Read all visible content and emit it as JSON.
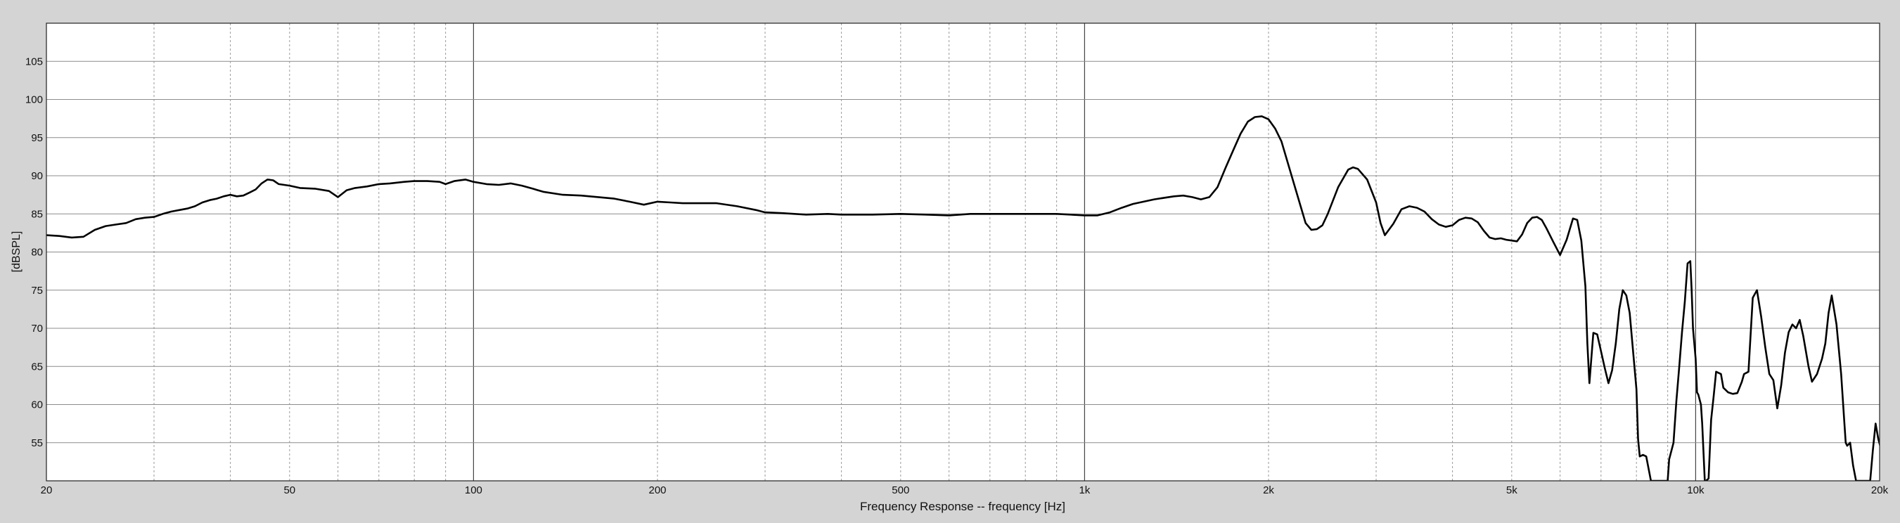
{
  "chart_data": {
    "type": "line",
    "xlabel": "Frequency Response -- frequency [Hz]",
    "ylabel": "[dBSPL]",
    "x_scale": "log",
    "xlim": [
      20,
      20000
    ],
    "ylim": [
      50,
      110
    ],
    "x_ticks": [
      {
        "value": 20,
        "label": "20"
      },
      {
        "value": 50,
        "label": "50"
      },
      {
        "value": 100,
        "label": "100"
      },
      {
        "value": 200,
        "label": "200"
      },
      {
        "value": 500,
        "label": "500"
      },
      {
        "value": 1000,
        "label": "1k"
      },
      {
        "value": 2000,
        "label": "2k"
      },
      {
        "value": 5000,
        "label": "5k"
      },
      {
        "value": 10000,
        "label": "10k"
      },
      {
        "value": 20000,
        "label": "20k"
      }
    ],
    "y_ticks": [
      {
        "value": 55,
        "label": "55"
      },
      {
        "value": 60,
        "label": "60"
      },
      {
        "value": 65,
        "label": "65"
      },
      {
        "value": 70,
        "label": "70"
      },
      {
        "value": 75,
        "label": "75"
      },
      {
        "value": 80,
        "label": "80"
      },
      {
        "value": 85,
        "label": "85"
      },
      {
        "value": 90,
        "label": "90"
      },
      {
        "value": 95,
        "label": "95"
      },
      {
        "value": 100,
        "label": "100"
      },
      {
        "value": 105,
        "label": "105"
      }
    ],
    "grid": true,
    "series": [
      {
        "color": "#000000",
        "points": [
          [
            20,
            82.2
          ],
          [
            21,
            82.1
          ],
          [
            22,
            81.9
          ],
          [
            23,
            82.0
          ],
          [
            24,
            82.9
          ],
          [
            25,
            83.4
          ],
          [
            26,
            83.6
          ],
          [
            27,
            83.8
          ],
          [
            28,
            84.3
          ],
          [
            29,
            84.5
          ],
          [
            30,
            84.6
          ],
          [
            31,
            85.0
          ],
          [
            32,
            85.3
          ],
          [
            33,
            85.5
          ],
          [
            34,
            85.7
          ],
          [
            35,
            86.0
          ],
          [
            36,
            86.5
          ],
          [
            37,
            86.8
          ],
          [
            38,
            87.0
          ],
          [
            39,
            87.3
          ],
          [
            40,
            87.5
          ],
          [
            41,
            87.3
          ],
          [
            42,
            87.4
          ],
          [
            43,
            87.8
          ],
          [
            44,
            88.2
          ],
          [
            45,
            89.0
          ],
          [
            46,
            89.5
          ],
          [
            47,
            89.4
          ],
          [
            48,
            88.9
          ],
          [
            50,
            88.7
          ],
          [
            52,
            88.4
          ],
          [
            55,
            88.3
          ],
          [
            58,
            88.0
          ],
          [
            60,
            87.2
          ],
          [
            62,
            88.1
          ],
          [
            64,
            88.4
          ],
          [
            67,
            88.6
          ],
          [
            70,
            88.9
          ],
          [
            73,
            89.0
          ],
          [
            77,
            89.2
          ],
          [
            80,
            89.3
          ],
          [
            84,
            89.3
          ],
          [
            88,
            89.2
          ],
          [
            90,
            88.9
          ],
          [
            93,
            89.3
          ],
          [
            97,
            89.5
          ],
          [
            100,
            89.2
          ],
          [
            105,
            88.9
          ],
          [
            110,
            88.8
          ],
          [
            115,
            89.0
          ],
          [
            120,
            88.7
          ],
          [
            125,
            88.3
          ],
          [
            130,
            87.9
          ],
          [
            140,
            87.5
          ],
          [
            150,
            87.4
          ],
          [
            160,
            87.2
          ],
          [
            170,
            87.0
          ],
          [
            180,
            86.6
          ],
          [
            190,
            86.2
          ],
          [
            200,
            86.6
          ],
          [
            210,
            86.5
          ],
          [
            220,
            86.4
          ],
          [
            240,
            86.4
          ],
          [
            250,
            86.4
          ],
          [
            270,
            86.0
          ],
          [
            290,
            85.5
          ],
          [
            300,
            85.2
          ],
          [
            320,
            85.1
          ],
          [
            350,
            84.9
          ],
          [
            380,
            85.0
          ],
          [
            400,
            84.9
          ],
          [
            450,
            84.9
          ],
          [
            500,
            85.0
          ],
          [
            550,
            84.9
          ],
          [
            600,
            84.8
          ],
          [
            650,
            85.0
          ],
          [
            700,
            85.0
          ],
          [
            800,
            85.0
          ],
          [
            900,
            85.0
          ],
          [
            1000,
            84.8
          ],
          [
            1050,
            84.8
          ],
          [
            1100,
            85.2
          ],
          [
            1150,
            85.8
          ],
          [
            1200,
            86.3
          ],
          [
            1300,
            86.9
          ],
          [
            1400,
            87.3
          ],
          [
            1450,
            87.4
          ],
          [
            1500,
            87.2
          ],
          [
            1550,
            86.9
          ],
          [
            1600,
            87.2
          ],
          [
            1650,
            88.5
          ],
          [
            1700,
            91.0
          ],
          [
            1750,
            93.3
          ],
          [
            1800,
            95.5
          ],
          [
            1850,
            97.1
          ],
          [
            1900,
            97.7
          ],
          [
            1950,
            97.8
          ],
          [
            2000,
            97.4
          ],
          [
            2050,
            96.2
          ],
          [
            2100,
            94.5
          ],
          [
            2200,
            89.0
          ],
          [
            2300,
            83.8
          ],
          [
            2350,
            82.9
          ],
          [
            2400,
            83.0
          ],
          [
            2450,
            83.5
          ],
          [
            2500,
            85.0
          ],
          [
            2600,
            88.5
          ],
          [
            2700,
            90.8
          ],
          [
            2750,
            91.1
          ],
          [
            2800,
            90.9
          ],
          [
            2900,
            89.5
          ],
          [
            3000,
            86.5
          ],
          [
            3050,
            83.8
          ],
          [
            3100,
            82.2
          ],
          [
            3200,
            83.7
          ],
          [
            3300,
            85.6
          ],
          [
            3400,
            86.0
          ],
          [
            3500,
            85.8
          ],
          [
            3600,
            85.3
          ],
          [
            3700,
            84.3
          ],
          [
            3800,
            83.6
          ],
          [
            3900,
            83.3
          ],
          [
            4000,
            83.5
          ],
          [
            4100,
            84.2
          ],
          [
            4200,
            84.5
          ],
          [
            4300,
            84.4
          ],
          [
            4400,
            83.9
          ],
          [
            4500,
            82.8
          ],
          [
            4600,
            81.9
          ],
          [
            4700,
            81.7
          ],
          [
            4800,
            81.8
          ],
          [
            4900,
            81.6
          ],
          [
            5000,
            81.5
          ],
          [
            5100,
            81.4
          ],
          [
            5200,
            82.3
          ],
          [
            5300,
            83.8
          ],
          [
            5400,
            84.5
          ],
          [
            5500,
            84.6
          ],
          [
            5600,
            84.2
          ],
          [
            5700,
            83.1
          ],
          [
            5850,
            81.3
          ],
          [
            6000,
            79.6
          ],
          [
            6150,
            81.6
          ],
          [
            6300,
            84.4
          ],
          [
            6400,
            84.2
          ],
          [
            6500,
            81.5
          ],
          [
            6600,
            75.5
          ],
          [
            6650,
            68.0
          ],
          [
            6700,
            62.8
          ],
          [
            6800,
            69.4
          ],
          [
            6900,
            69.2
          ],
          [
            7000,
            67.0
          ],
          [
            7100,
            64.8
          ],
          [
            7200,
            62.8
          ],
          [
            7300,
            64.5
          ],
          [
            7400,
            68.0
          ],
          [
            7500,
            72.5
          ],
          [
            7600,
            75.0
          ],
          [
            7700,
            74.3
          ],
          [
            7800,
            72.0
          ],
          [
            7900,
            67.0
          ],
          [
            8000,
            62.0
          ],
          [
            8050,
            55.5
          ],
          [
            8100,
            53.2
          ],
          [
            8200,
            53.4
          ],
          [
            8300,
            53.2
          ],
          [
            8450,
            50.0
          ],
          [
            9000,
            50.0
          ],
          [
            9050,
            52.8
          ],
          [
            9200,
            55.0
          ],
          [
            9300,
            60.5
          ],
          [
            9400,
            65.0
          ],
          [
            9500,
            69.5
          ],
          [
            9600,
            73.5
          ],
          [
            9700,
            78.5
          ],
          [
            9800,
            78.8
          ],
          [
            9850,
            75.0
          ],
          [
            9900,
            70.0
          ],
          [
            10000,
            66.0
          ],
          [
            10050,
            61.6
          ],
          [
            10100,
            61.3
          ],
          [
            10200,
            60.0
          ],
          [
            10250,
            57.5
          ],
          [
            10350,
            50.0
          ],
          [
            10400,
            50.0
          ],
          [
            10500,
            50.3
          ],
          [
            10600,
            58.0
          ],
          [
            10700,
            61.0
          ],
          [
            10800,
            64.3
          ],
          [
            11000,
            64.0
          ],
          [
            11100,
            62.2
          ],
          [
            11300,
            61.6
          ],
          [
            11500,
            61.4
          ],
          [
            11700,
            61.5
          ],
          [
            11900,
            63.0
          ],
          [
            12000,
            64.0
          ],
          [
            12200,
            64.3
          ],
          [
            12400,
            74.0
          ],
          [
            12600,
            75.0
          ],
          [
            12800,
            71.5
          ],
          [
            13000,
            67.5
          ],
          [
            13200,
            64.0
          ],
          [
            13400,
            63.2
          ],
          [
            13600,
            59.5
          ],
          [
            13800,
            62.5
          ],
          [
            14000,
            66.8
          ],
          [
            14200,
            69.5
          ],
          [
            14400,
            70.5
          ],
          [
            14600,
            70.0
          ],
          [
            14800,
            71.1
          ],
          [
            15000,
            69.0
          ],
          [
            15300,
            65.0
          ],
          [
            15500,
            63.0
          ],
          [
            15800,
            64.0
          ],
          [
            16100,
            66.0
          ],
          [
            16300,
            68.0
          ],
          [
            16500,
            72.0
          ],
          [
            16700,
            74.3
          ],
          [
            17000,
            70.5
          ],
          [
            17300,
            64.0
          ],
          [
            17500,
            58.0
          ],
          [
            17600,
            55.0
          ],
          [
            17700,
            54.6
          ],
          [
            17900,
            55.0
          ],
          [
            18100,
            52.0
          ],
          [
            18300,
            50.0
          ],
          [
            19300,
            50.0
          ],
          [
            19500,
            54.0
          ],
          [
            19700,
            57.5
          ],
          [
            19900,
            55.5
          ],
          [
            20100,
            54.2
          ],
          [
            20300,
            54.5
          ],
          [
            20600,
            55.0
          ],
          [
            20900,
            55.5
          ],
          [
            21100,
            56.2
          ],
          [
            21300,
            57.0
          ],
          [
            21500,
            55.0
          ],
          [
            21700,
            53.0
          ],
          [
            21900,
            50.0
          ]
        ]
      }
    ]
  }
}
